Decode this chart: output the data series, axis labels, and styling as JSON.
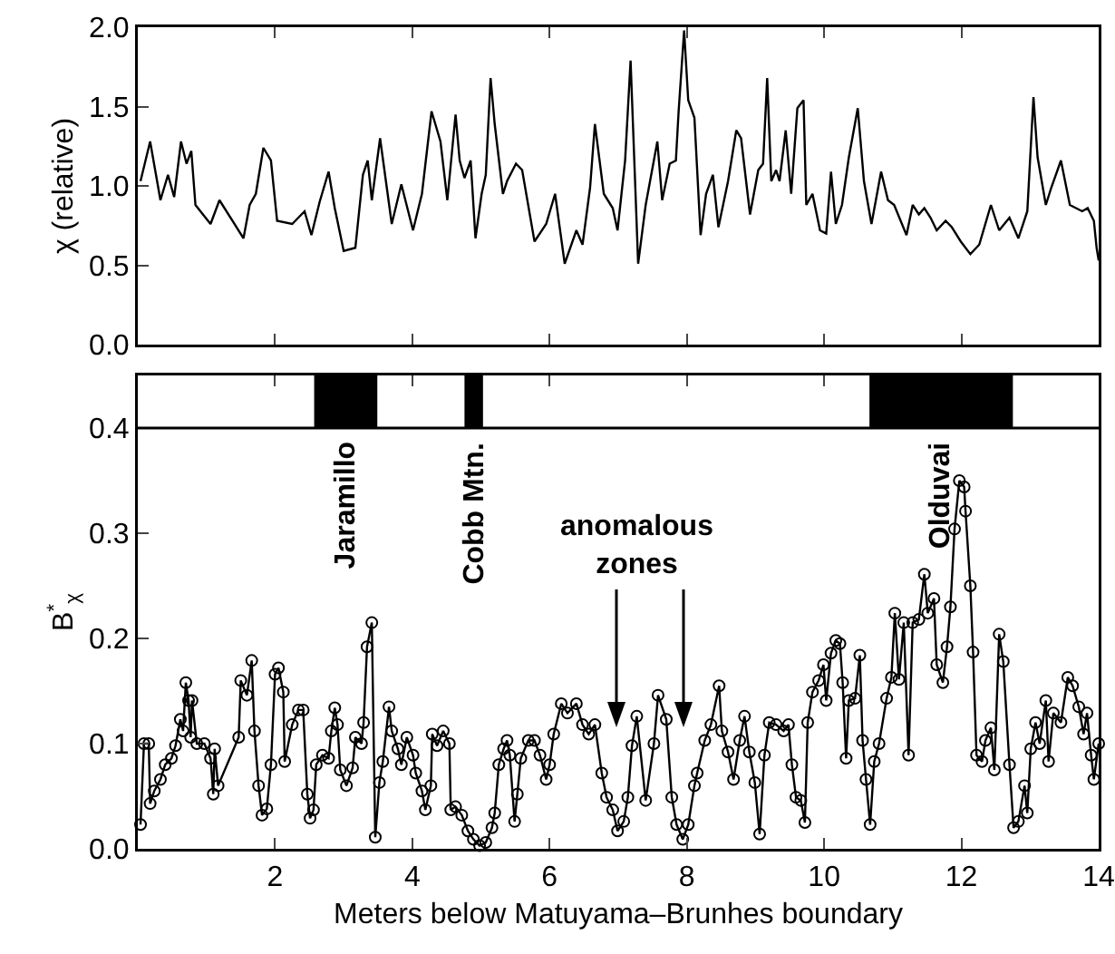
{
  "chart_data": [
    {
      "type": "line",
      "ylabel": "χ (relative)",
      "xlim": [
        0,
        14
      ],
      "xticks": [
        2,
        4,
        6,
        8,
        10,
        12,
        14
      ],
      "ylim": [
        0,
        2
      ],
      "yticks": [
        {
          "value": 0,
          "label": "0.0"
        },
        {
          "value": 0.5,
          "label": "0.5"
        },
        {
          "value": 1,
          "label": "1.0"
        },
        {
          "value": 1.5,
          "label": "1.5"
        },
        {
          "value": 2,
          "label": "2.0"
        }
      ],
      "tick_labels": "y",
      "grid": false,
      "marker": "none",
      "series": [
        {
          "color": "#000000",
          "x": [
            0.04,
            0.18,
            0.33,
            0.44,
            0.53,
            0.63,
            0.71,
            0.78,
            0.84,
            1.06,
            1.19,
            1.54,
            1.63,
            1.72,
            1.83,
            1.94,
            2.03,
            2.25,
            2.43,
            2.53,
            2.65,
            2.78,
            2.87,
            3.0,
            3.17,
            3.28,
            3.35,
            3.41,
            3.53,
            3.7,
            3.84,
            4.01,
            4.14,
            4.28,
            4.41,
            4.51,
            4.63,
            4.69,
            4.76,
            4.85,
            4.92,
            5.01,
            5.07,
            5.14,
            5.2,
            5.32,
            5.38,
            5.51,
            5.6,
            5.78,
            5.95,
            6.08,
            6.22,
            6.39,
            6.48,
            6.59,
            6.66,
            6.79,
            6.92,
            6.99,
            7.1,
            7.18,
            7.29,
            7.4,
            7.57,
            7.64,
            7.75,
            7.84,
            7.88,
            7.96,
            8.02,
            8.11,
            8.2,
            8.28,
            8.38,
            8.46,
            8.6,
            8.72,
            8.79,
            8.92,
            9.04,
            9.11,
            9.17,
            9.23,
            9.3,
            9.35,
            9.44,
            9.52,
            9.61,
            9.7,
            9.74,
            9.83,
            9.94,
            10.03,
            10.1,
            10.17,
            10.26,
            10.36,
            10.49,
            10.58,
            10.69,
            10.83,
            10.93,
            11.02,
            11.2,
            11.29,
            11.38,
            11.46,
            11.55,
            11.64,
            11.77,
            11.86,
            11.99,
            12.13,
            12.26,
            12.43,
            12.55,
            12.7,
            12.83,
            12.96,
            13.05,
            13.11,
            13.23,
            13.31,
            13.45,
            13.58,
            13.76,
            13.84,
            13.93,
            13.97,
            14.0
          ],
          "values": [
            1.03,
            1.28,
            0.91,
            1.07,
            0.93,
            1.28,
            1.14,
            1.22,
            0.88,
            0.76,
            0.91,
            0.67,
            0.88,
            0.95,
            1.24,
            1.16,
            0.78,
            0.76,
            0.84,
            0.69,
            0.9,
            1.09,
            0.86,
            0.59,
            0.61,
            1.07,
            1.16,
            0.91,
            1.3,
            0.76,
            1.01,
            0.72,
            0.95,
            1.47,
            1.28,
            0.91,
            1.45,
            1.16,
            1.05,
            1.16,
            0.67,
            0.95,
            1.07,
            1.68,
            1.39,
            0.95,
            1.03,
            1.14,
            1.1,
            0.65,
            0.76,
            0.95,
            0.51,
            0.72,
            0.63,
            0.99,
            1.39,
            0.95,
            0.86,
            0.72,
            1.16,
            1.79,
            0.51,
            0.88,
            1.28,
            0.91,
            1.14,
            1.16,
            1.47,
            1.98,
            1.54,
            1.43,
            0.69,
            0.95,
            1.07,
            0.74,
            1.03,
            1.35,
            1.3,
            0.82,
            1.1,
            1.14,
            1.68,
            1.03,
            1.1,
            1.03,
            1.35,
            0.95,
            1.49,
            1.54,
            0.88,
            0.95,
            0.72,
            0.7,
            1.09,
            0.76,
            0.88,
            1.18,
            1.49,
            1.03,
            0.76,
            1.09,
            0.91,
            0.88,
            0.69,
            0.88,
            0.82,
            0.86,
            0.8,
            0.72,
            0.78,
            0.74,
            0.65,
            0.57,
            0.63,
            0.88,
            0.72,
            0.8,
            0.67,
            0.84,
            1.56,
            1.18,
            0.88,
            0.99,
            1.16,
            0.88,
            0.84,
            0.86,
            0.78,
            0.61,
            0.53
          ]
        }
      ]
    },
    {
      "type": "line",
      "xlabel": "Meters below Matuyama–Brunhes boundary",
      "ylabel": "B$^{*}$$_{χ}$",
      "xlim": [
        0,
        14
      ],
      "xticks": [
        2,
        4,
        6,
        8,
        10,
        12,
        14
      ],
      "ylim": [
        0,
        0.45
      ],
      "yticks": [
        {
          "value": 0,
          "label": "0.0"
        },
        0.1,
        0.2,
        0.3,
        0.4
      ],
      "grid": false,
      "marker": "circle",
      "ref_lines": [
        {
          "axis": "y",
          "value": 0.4,
          "color": "#000000"
        }
      ],
      "bands": [
        {
          "axis": "x",
          "from": 2.57,
          "to": 3.49,
          "label": "Jaramillo",
          "color": "#000000"
        },
        {
          "axis": "x",
          "from": 4.76,
          "to": 5.03,
          "label": "Cobb Mtn.",
          "color": "#000000"
        },
        {
          "axis": "x",
          "from": 10.66,
          "to": 12.75,
          "label": "Olduvai",
          "color": "#000000"
        }
      ],
      "annotations": [
        "anomalous zones"
      ],
      "series": [
        {
          "color": "#000000",
          "x": [
            0.04,
            0.09,
            0.16,
            0.18,
            0.24,
            0.33,
            0.4,
            0.49,
            0.55,
            0.62,
            0.66,
            0.7,
            0.74,
            0.77,
            0.79,
            0.86,
            0.97,
            1.06,
            1.1,
            1.12,
            1.17,
            1.47,
            1.5,
            1.59,
            1.66,
            1.7,
            1.76,
            1.81,
            1.88,
            1.94,
            2.0,
            2.05,
            2.12,
            2.14,
            2.25,
            2.34,
            2.41,
            2.47,
            2.51,
            2.56,
            2.6,
            2.69,
            2.78,
            2.82,
            2.87,
            2.91,
            2.95,
            3.04,
            3.13,
            3.17,
            3.26,
            3.29,
            3.34,
            3.41,
            3.46,
            3.52,
            3.57,
            3.66,
            3.7,
            3.79,
            3.84,
            3.92,
            4.01,
            4.05,
            4.14,
            4.19,
            4.27,
            4.29,
            4.36,
            4.45,
            4.54,
            4.56,
            4.63,
            4.72,
            4.81,
            4.89,
            4.98,
            5.07,
            5.16,
            5.2,
            5.26,
            5.33,
            5.38,
            5.42,
            5.49,
            5.53,
            5.58,
            5.69,
            5.78,
            5.86,
            5.95,
            6.0,
            6.06,
            6.17,
            6.26,
            6.39,
            6.48,
            6.57,
            6.66,
            6.76,
            6.83,
            6.92,
            6.99,
            7.08,
            7.14,
            7.2,
            7.27,
            7.4,
            7.52,
            7.58,
            7.7,
            7.78,
            7.85,
            7.94,
            8.02,
            8.11,
            8.15,
            8.26,
            8.35,
            8.47,
            8.51,
            8.6,
            8.68,
            8.77,
            8.84,
            8.91,
            8.99,
            9.06,
            9.13,
            9.2,
            9.3,
            9.41,
            9.48,
            9.53,
            9.59,
            9.66,
            9.72,
            9.76,
            9.83,
            9.92,
            9.99,
            10.03,
            10.1,
            10.17,
            10.23,
            10.27,
            10.32,
            10.36,
            10.45,
            10.52,
            10.56,
            10.61,
            10.67,
            10.73,
            10.8,
            10.91,
            10.98,
            11.03,
            11.09,
            11.16,
            11.23,
            11.29,
            11.38,
            11.46,
            11.51,
            11.6,
            11.64,
            11.73,
            11.79,
            11.84,
            11.9,
            11.97,
            12.04,
            12.06,
            12.13,
            12.17,
            12.22,
            12.3,
            12.35,
            12.43,
            12.48,
            12.55,
            12.61,
            12.7,
            12.76,
            12.83,
            12.92,
            12.96,
            13.01,
            13.08,
            13.14,
            13.23,
            13.27,
            13.34,
            13.45,
            13.55,
            13.62,
            13.71,
            13.78,
            13.83,
            13.89,
            13.93,
            14.0
          ],
          "values": [
            0.023,
            0.1,
            0.1,
            0.043,
            0.055,
            0.066,
            0.08,
            0.086,
            0.098,
            0.123,
            0.112,
            0.158,
            0.141,
            0.106,
            0.141,
            0.1,
            0.1,
            0.086,
            0.052,
            0.095,
            0.06,
            0.106,
            0.16,
            0.146,
            0.179,
            0.112,
            0.06,
            0.032,
            0.038,
            0.08,
            0.166,
            0.172,
            0.149,
            0.083,
            0.118,
            0.132,
            0.132,
            0.052,
            0.029,
            0.037,
            0.08,
            0.089,
            0.086,
            0.112,
            0.134,
            0.118,
            0.075,
            0.06,
            0.077,
            0.106,
            0.1,
            0.12,
            0.192,
            0.215,
            0.011,
            0.063,
            0.083,
            0.135,
            0.112,
            0.095,
            0.08,
            0.106,
            0.089,
            0.072,
            0.055,
            0.037,
            0.06,
            0.109,
            0.098,
            0.112,
            0.1,
            0.037,
            0.04,
            0.032,
            0.017,
            0.009,
            0.003,
            0.006,
            0.02,
            0.034,
            0.08,
            0.095,
            0.103,
            0.089,
            0.026,
            0.052,
            0.086,
            0.103,
            0.103,
            0.089,
            0.066,
            0.08,
            0.109,
            0.138,
            0.129,
            0.138,
            0.118,
            0.109,
            0.118,
            0.072,
            0.049,
            0.037,
            0.017,
            0.026,
            0.049,
            0.098,
            0.126,
            0.046,
            0.1,
            0.146,
            0.123,
            0.049,
            0.023,
            0.009,
            0.023,
            0.06,
            0.072,
            0.103,
            0.118,
            0.155,
            0.112,
            0.092,
            0.066,
            0.103,
            0.126,
            0.092,
            0.063,
            0.014,
            0.089,
            0.12,
            0.118,
            0.112,
            0.118,
            0.08,
            0.049,
            0.046,
            0.025,
            0.12,
            0.149,
            0.16,
            0.175,
            0.141,
            0.186,
            0.198,
            0.195,
            0.158,
            0.086,
            0.141,
            0.143,
            0.184,
            0.103,
            0.066,
            0.023,
            0.083,
            0.1,
            0.143,
            0.163,
            0.224,
            0.161,
            0.215,
            0.089,
            0.215,
            0.218,
            0.261,
            0.224,
            0.238,
            0.175,
            0.158,
            0.192,
            0.23,
            0.304,
            0.35,
            0.344,
            0.321,
            0.25,
            0.187,
            0.089,
            0.083,
            0.103,
            0.115,
            0.075,
            0.204,
            0.178,
            0.08,
            0.02,
            0.026,
            0.06,
            0.034,
            0.095,
            0.12,
            0.1,
            0.141,
            0.083,
            0.129,
            0.12,
            0.163,
            0.155,
            0.135,
            0.109,
            0.129,
            0.089,
            0.066,
            0.1
          ]
        }
      ]
    }
  ]
}
